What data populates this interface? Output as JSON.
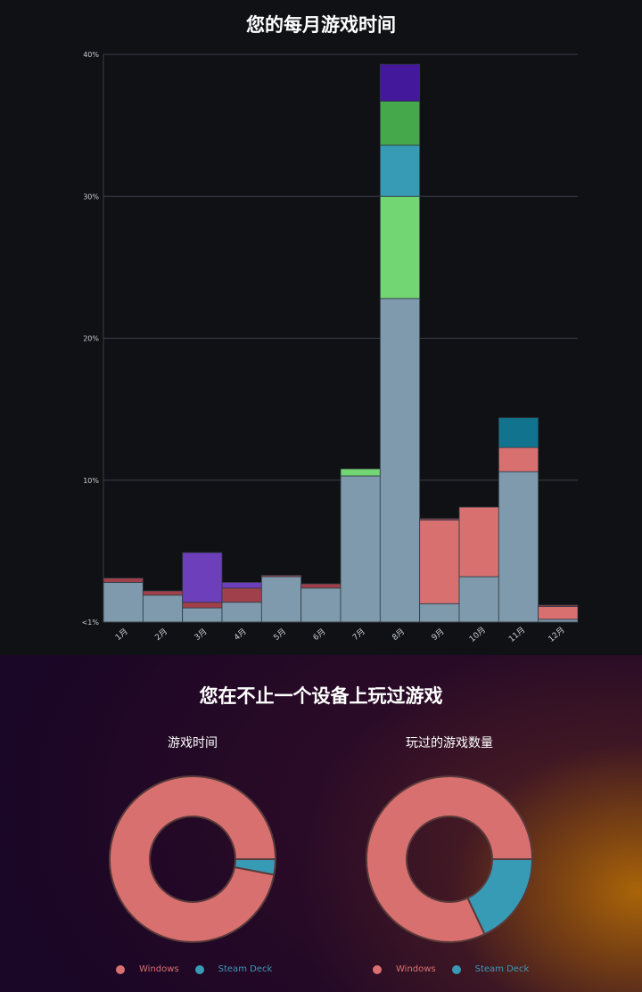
{
  "header": {
    "title": "您的每月游戏时间"
  },
  "devices_section": {
    "title": "您在不止一个设备上玩过游戏"
  },
  "chart_data": [
    {
      "type": "bar",
      "stacked": true,
      "title": "您的每月游戏时间",
      "categories": [
        "1月",
        "2月",
        "3月",
        "4月",
        "5月",
        "6月",
        "7月",
        "8月",
        "9月",
        "10月",
        "11月",
        "12月"
      ],
      "y_ticks": [
        "<1%",
        "10%",
        "20%",
        "30%",
        "40%"
      ],
      "ylim": [
        0,
        40
      ],
      "grid": true,
      "series": [
        {
          "color": "#7f9aac",
          "values": [
            2.8,
            1.9,
            1.0,
            1.4,
            3.2,
            2.4,
            10.3,
            22.8,
            1.3,
            3.2,
            10.6,
            0.2
          ]
        },
        {
          "color": "#d97070",
          "values": [
            0,
            0,
            0,
            0,
            0,
            0,
            0,
            0,
            5.9,
            4.9,
            1.7,
            0.9
          ]
        },
        {
          "color": "#a0404a",
          "values": [
            0.3,
            0.3,
            0.4,
            1.0,
            0.1,
            0.3,
            0,
            0,
            0.1,
            0,
            0,
            0.1
          ]
        },
        {
          "color": "#6e3fba",
          "values": [
            0,
            0,
            3.5,
            0.4,
            0,
            0,
            0,
            0,
            0,
            0,
            0,
            0
          ]
        },
        {
          "color": "#72d672",
          "values": [
            0,
            0,
            0,
            0,
            0,
            0,
            0.5,
            7.2,
            0,
            0,
            0,
            0
          ]
        },
        {
          "color": "#389bb6",
          "values": [
            0,
            0,
            0,
            0,
            0,
            0,
            0,
            3.6,
            0,
            0,
            0,
            0
          ]
        },
        {
          "color": "#45a84a",
          "values": [
            0,
            0,
            0,
            0,
            0,
            0,
            0,
            3.1,
            0,
            0,
            0,
            0
          ]
        },
        {
          "color": "#44189a",
          "values": [
            0,
            0,
            0,
            0,
            0,
            0,
            0,
            2.6,
            0,
            0,
            0,
            0
          ]
        },
        {
          "color": "#12738e",
          "values": [
            0,
            0,
            0,
            0,
            0,
            0,
            0,
            0,
            0,
            0,
            2.1,
            0
          ]
        }
      ]
    },
    {
      "type": "pie",
      "donut": true,
      "title": "游戏时间",
      "labels": [
        "Windows",
        "Steam Deck"
      ],
      "values": [
        97,
        3
      ],
      "colors": [
        "#d97070",
        "#389bb6"
      ],
      "legend": "bottom"
    },
    {
      "type": "pie",
      "donut": true,
      "title": "玩过的游戏数量",
      "labels": [
        "Windows",
        "Steam Deck"
      ],
      "values": [
        82,
        18
      ],
      "colors": [
        "#d97070",
        "#389bb6"
      ],
      "legend": "bottom"
    }
  ]
}
